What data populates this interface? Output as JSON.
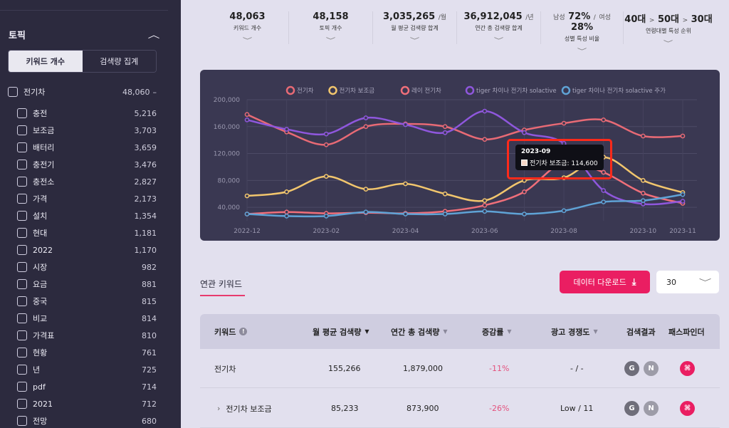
{
  "sidebar": {
    "title": "토픽",
    "toggle": {
      "keywords_label": "키워드 개수",
      "search_label": "검색량 집계"
    },
    "parent": {
      "label": "전기차",
      "count": "48,060",
      "dash": "–"
    },
    "items": [
      {
        "label": "충전",
        "count": "5,216"
      },
      {
        "label": "보조금",
        "count": "3,703"
      },
      {
        "label": "배터리",
        "count": "3,659"
      },
      {
        "label": "충전기",
        "count": "3,476"
      },
      {
        "label": "충전소",
        "count": "2,827"
      },
      {
        "label": "가격",
        "count": "2,173"
      },
      {
        "label": "설치",
        "count": "1,354"
      },
      {
        "label": "현대",
        "count": "1,181"
      },
      {
        "label": "2022",
        "count": "1,170"
      },
      {
        "label": "시장",
        "count": "982"
      },
      {
        "label": "요금",
        "count": "881"
      },
      {
        "label": "중국",
        "count": "815"
      },
      {
        "label": "비교",
        "count": "814"
      },
      {
        "label": "가격표",
        "count": "810"
      },
      {
        "label": "현황",
        "count": "761"
      },
      {
        "label": "년",
        "count": "725"
      },
      {
        "label": "pdf",
        "count": "714"
      },
      {
        "label": "2021",
        "count": "712"
      },
      {
        "label": "전망",
        "count": "680"
      }
    ]
  },
  "stats": [
    {
      "value": "48,063",
      "unit": "",
      "label": "키워드 개수"
    },
    {
      "value": "48,158",
      "unit": "",
      "label": "토픽 개수"
    },
    {
      "value": "3,035,265",
      "unit": "/월",
      "label": "월 평균 검색량 합계"
    },
    {
      "value": "36,912,045",
      "unit": "/년",
      "label": "연간 총 검색량 합계"
    },
    {
      "male_prefix": "남성",
      "male_value": "72%",
      "sep": "/",
      "female_prefix": "여성",
      "female_value": "28%",
      "label": "성별 특성 비율"
    },
    {
      "age1": "40대",
      "age2": "50대",
      "age3": "30대",
      "arrow": ">",
      "label": "연령대별 특성 순위"
    }
  ],
  "chart_data": {
    "type": "line",
    "x": [
      "2022-12",
      "2023-01",
      "2023-02",
      "2023-03",
      "2023-04",
      "2023-05",
      "2023-06",
      "2023-07",
      "2023-08",
      "2023-09",
      "2023-10",
      "2023-11"
    ],
    "xticks": [
      "2022-12",
      "2023-02",
      "2023-04",
      "2023-06",
      "2023-08",
      "2023-10",
      "2023-11"
    ],
    "yticks": [
      "200,000",
      "160,000",
      "120,000",
      "80,000",
      "40,000"
    ],
    "ylim": [
      20000,
      200000
    ],
    "series": [
      {
        "name": "전기차",
        "color": "#e86a75",
        "values": [
          178000,
          152000,
          133000,
          160000,
          164000,
          160000,
          141000,
          155000,
          165000,
          170000,
          146000,
          146000
        ]
      },
      {
        "name": "전기차 보조금",
        "color": "#f2c66d",
        "values": [
          57000,
          63000,
          86000,
          67000,
          75000,
          60000,
          50000,
          80000,
          84000,
          114600,
          80000,
          62000
        ]
      },
      {
        "name": "레이 전기차",
        "color": "#f06f7a",
        "values": [
          30000,
          33000,
          31000,
          32000,
          31000,
          34000,
          43000,
          63000,
          107000,
          92000,
          61000,
          46000
        ]
      },
      {
        "name": "tiger 차이나 전기차 solactive",
        "color": "#8f57dd",
        "values": [
          170000,
          156000,
          149000,
          173000,
          163000,
          151000,
          183000,
          151000,
          135000,
          65000,
          45000,
          49000
        ]
      },
      {
        "name": "tiger 차이나 전기차 solactive 주가",
        "color": "#5fa3d6",
        "values": [
          30000,
          27000,
          27000,
          33000,
          30000,
          30000,
          34000,
          30000,
          35000,
          48000,
          50000,
          59000
        ]
      }
    ],
    "tooltip": {
      "title": "2023-09",
      "text": "전기차 보조금: 114,600"
    },
    "grid": true,
    "legend": "top-center"
  },
  "related": {
    "title": "연관 키워드",
    "download_label": "데이터 다운로드",
    "page_size": "30"
  },
  "table": {
    "headers": [
      "키워드",
      "월 평균 검색량",
      "연간 총 검색량",
      "증감률",
      "광고 경쟁도",
      "검색결과",
      "패스파인더"
    ],
    "rows": [
      {
        "keyword": "전기차",
        "monthly": "155,266",
        "yearly": "1,879,000",
        "change": "-11%",
        "competition": "- / -",
        "g": "G",
        "n": "N"
      },
      {
        "keyword": "전기차 보조금",
        "monthly": "85,233",
        "yearly": "873,900",
        "change": "-26%",
        "competition": "Low / 11",
        "g": "G",
        "n": "N",
        "expandable": true
      }
    ]
  }
}
